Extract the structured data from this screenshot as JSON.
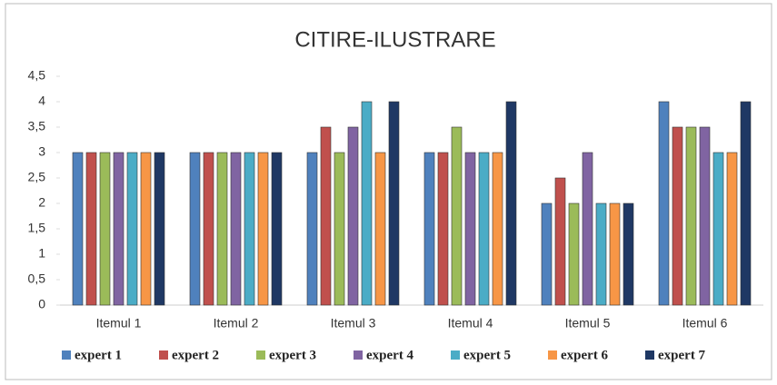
{
  "chart_data": {
    "type": "bar",
    "title": "CITIRE-ILUSTRARE",
    "categories": [
      "Itemul 1",
      "Itemul 2",
      "Itemul 3",
      "Itemul 4",
      "Itemul 5",
      "Itemul 6"
    ],
    "series": [
      {
        "name": "expert 1",
        "color": "#4f81bd",
        "values": [
          3,
          3,
          3,
          3,
          2,
          4
        ]
      },
      {
        "name": "expert 2",
        "color": "#c0504d",
        "values": [
          3,
          3,
          3.5,
          3,
          2.5,
          3.5
        ]
      },
      {
        "name": "expert 3",
        "color": "#9bbb59",
        "values": [
          3,
          3,
          3,
          3.5,
          2,
          3.5
        ]
      },
      {
        "name": "expert 4",
        "color": "#8064a2",
        "values": [
          3,
          3,
          3.5,
          3,
          3,
          3.5
        ]
      },
      {
        "name": "expert 5",
        "color": "#4bacc6",
        "values": [
          3,
          3,
          4,
          3,
          2,
          3
        ]
      },
      {
        "name": "expert 6",
        "color": "#f79646",
        "values": [
          3,
          3,
          3,
          3,
          2,
          3
        ]
      },
      {
        "name": "expert 7",
        "color": "#1f3864",
        "values": [
          3,
          3,
          4,
          4,
          2,
          4
        ]
      }
    ],
    "ylim": [
      0,
      4.5
    ],
    "yticks": [
      0,
      {
        "value": 0.5,
        "label": "0,5"
      },
      1,
      {
        "value": 1.5,
        "label": "1,5"
      },
      2,
      {
        "value": 2.5,
        "label": "2,5"
      },
      3,
      {
        "value": 3.5,
        "label": "3,5"
      },
      4,
      {
        "value": 4.5,
        "label": "4,5"
      }
    ],
    "grid": false,
    "legend": "bottom"
  }
}
